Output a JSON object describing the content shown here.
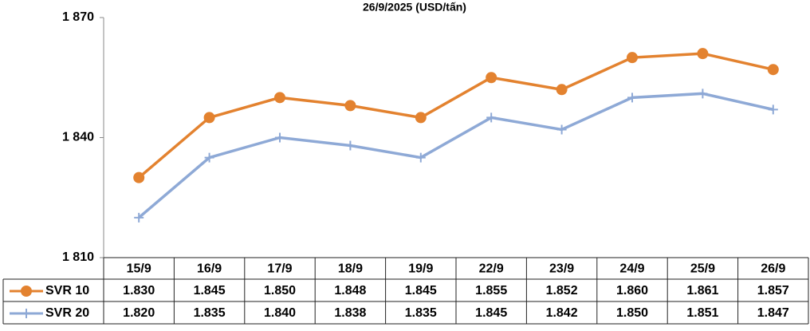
{
  "chart_data": {
    "type": "line",
    "title": "26/9/2025 (USD/tấn)",
    "categories": [
      "15/9",
      "16/9",
      "17/9",
      "18/9",
      "19/9",
      "22/9",
      "23/9",
      "24/9",
      "25/9",
      "26/9"
    ],
    "series": [
      {
        "name": "SVR 10",
        "color": "#e3822f",
        "marker": "circle",
        "values": [
          1830,
          1845,
          1850,
          1848,
          1845,
          1855,
          1852,
          1860,
          1861,
          1857
        ],
        "value_labels": [
          "1.830",
          "1.845",
          "1.850",
          "1.848",
          "1.845",
          "1.855",
          "1.852",
          "1.860",
          "1.861",
          "1.857"
        ]
      },
      {
        "name": "SVR 20",
        "color": "#8ea9d6",
        "marker": "plus",
        "values": [
          1820,
          1835,
          1840,
          1838,
          1835,
          1845,
          1842,
          1850,
          1851,
          1847
        ],
        "value_labels": [
          "1.820",
          "1.835",
          "1.840",
          "1.838",
          "1.835",
          "1.845",
          "1.842",
          "1.850",
          "1.851",
          "1.847"
        ]
      }
    ],
    "ylim": [
      1810,
      1870
    ],
    "yticks": [
      {
        "value": 1810,
        "label": "1 810"
      },
      {
        "value": 1840,
        "label": "1 840"
      },
      {
        "value": 1870,
        "label": "1 870"
      }
    ],
    "grid": false
  }
}
